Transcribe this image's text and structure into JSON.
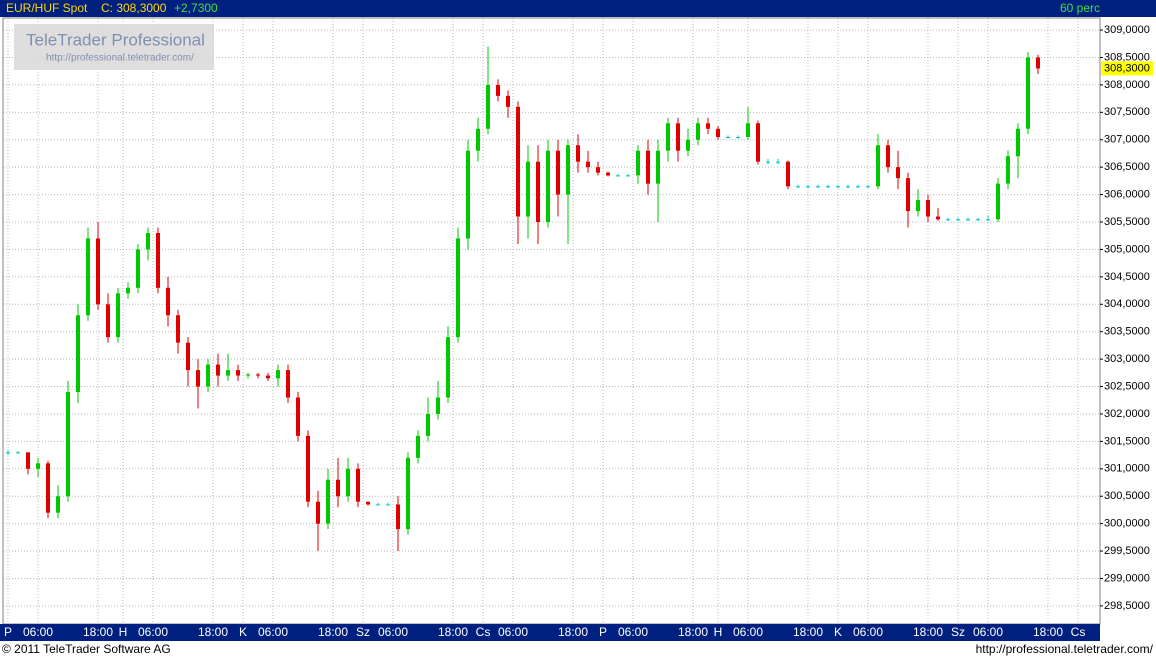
{
  "chart_data": {
    "type": "candlestick",
    "symbol": "EUR/HUF Spot",
    "close_text": "C: 308,3000",
    "change_text": "+2,7300",
    "interval": "60 perc",
    "logo_title": "TeleTrader Professional",
    "logo_url": "http://professional.teletrader.com/",
    "copyright": "© 2011 TeleTrader Software AG",
    "footer_url": "http://professional.teletrader.com/",
    "last_price_label": "308,3000",
    "up_color": "#00c800",
    "down_color": "#e00000",
    "flat_color": "#00c8c8",
    "grid": true,
    "xlim": [
      -1,
      218.4
    ],
    "ylim": [
      298.17,
      309.22
    ],
    "xticks": [
      {
        "value": 0,
        "label": "P"
      },
      {
        "value": 6,
        "label": "06:00"
      },
      {
        "value": 18,
        "label": "18:00"
      },
      {
        "value": 23,
        "label": "H"
      },
      {
        "value": 29,
        "label": "06:00"
      },
      {
        "value": 41,
        "label": "18:00"
      },
      {
        "value": 47,
        "label": "K"
      },
      {
        "value": 53,
        "label": "06:00"
      },
      {
        "value": 65,
        "label": "18:00"
      },
      {
        "value": 71,
        "label": "Sz"
      },
      {
        "value": 77,
        "label": "06:00"
      },
      {
        "value": 89,
        "label": "18:00"
      },
      {
        "value": 95,
        "label": "Cs"
      },
      {
        "value": 101,
        "label": "06:00"
      },
      {
        "value": 113,
        "label": "18:00"
      },
      {
        "value": 119,
        "label": "P"
      },
      {
        "value": 125,
        "label": "06:00"
      },
      {
        "value": 137,
        "label": "18:00"
      },
      {
        "value": 142,
        "label": "H"
      },
      {
        "value": 148,
        "label": "06:00"
      },
      {
        "value": 160,
        "label": "18:00"
      },
      {
        "value": 166,
        "label": "K"
      },
      {
        "value": 172,
        "label": "06:00"
      },
      {
        "value": 184,
        "label": "18:00"
      },
      {
        "value": 190,
        "label": "Sz"
      },
      {
        "value": 196,
        "label": "06:00"
      },
      {
        "value": 208,
        "label": "18:00"
      },
      {
        "value": 214,
        "label": "Cs"
      }
    ],
    "yticks": [
      {
        "value": 298.5,
        "label": "298,5000"
      },
      {
        "value": 299,
        "label": "299,0000"
      },
      {
        "value": 299.5,
        "label": "299,5000"
      },
      {
        "value": 300,
        "label": "300,0000"
      },
      {
        "value": 300.5,
        "label": "300,5000"
      },
      {
        "value": 301,
        "label": "301,0000"
      },
      {
        "value": 301.5,
        "label": "301,5000"
      },
      {
        "value": 302,
        "label": "302,0000"
      },
      {
        "value": 302.5,
        "label": "302,5000"
      },
      {
        "value": 303,
        "label": "303,0000"
      },
      {
        "value": 303.5,
        "label": "303,5000"
      },
      {
        "value": 304,
        "label": "304,0000"
      },
      {
        "value": 304.5,
        "label": "304,5000"
      },
      {
        "value": 305,
        "label": "305,0000"
      },
      {
        "value": 305.5,
        "label": "305,5000"
      },
      {
        "value": 306,
        "label": "306,0000"
      },
      {
        "value": 306.5,
        "label": "306,5000"
      },
      {
        "value": 307,
        "label": "307,0000"
      },
      {
        "value": 307.5,
        "label": "307,5000"
      },
      {
        "value": 308,
        "label": "308,0000"
      },
      {
        "value": 308.5,
        "label": "308,5000"
      },
      {
        "value": 309,
        "label": "309,0000"
      }
    ],
    "x": [
      0,
      2,
      4,
      6,
      8,
      10,
      12,
      14,
      16,
      18,
      20,
      22,
      24,
      26,
      28,
      30,
      32,
      34,
      36,
      38,
      40,
      42,
      44,
      46,
      48,
      50,
      52,
      54,
      56,
      58,
      60,
      62,
      64,
      66,
      68,
      70,
      72,
      74,
      76,
      78,
      80,
      82,
      84,
      86,
      88,
      90,
      92,
      94,
      96,
      98,
      100,
      102,
      104,
      106,
      108,
      110,
      112,
      114,
      116,
      118,
      120,
      122,
      124,
      126,
      128,
      130,
      132,
      134,
      136,
      138,
      140,
      142,
      144,
      146,
      148,
      150,
      152,
      154,
      156,
      158,
      160,
      162,
      164,
      166,
      168,
      170,
      172,
      174,
      176,
      178,
      180,
      182,
      184,
      186,
      188,
      190,
      192,
      194,
      196,
      198,
      200,
      202,
      204,
      206
    ],
    "open": [
      301.3,
      301.3,
      301.3,
      301.0,
      301.1,
      300.2,
      300.5,
      302.4,
      303.8,
      305.2,
      304.0,
      303.4,
      304.2,
      304.3,
      305.0,
      305.3,
      304.3,
      303.8,
      303.3,
      302.8,
      302.5,
      302.9,
      302.7,
      302.8,
      302.7,
      302.72,
      302.7,
      302.65,
      302.8,
      302.3,
      301.6,
      300.4,
      300.0,
      300.8,
      300.5,
      301.0,
      300.4,
      300.35,
      300.35,
      300.35,
      299.9,
      301.2,
      301.6,
      302.0,
      302.3,
      303.4,
      305.2,
      306.8,
      307.2,
      308.0,
      307.8,
      307.6,
      305.6,
      306.6,
      305.5,
      306.8,
      306.0,
      306.9,
      306.6,
      306.5,
      306.4,
      306.35,
      306.35,
      306.35,
      306.8,
      306.2,
      306.8,
      307.3,
      306.8,
      307.0,
      307.3,
      307.2,
      307.05,
      307.05,
      307.05,
      307.3,
      306.6,
      306.6,
      306.6,
      306.15,
      306.15,
      306.15,
      306.15,
      306.15,
      306.15,
      306.15,
      306.15,
      306.15,
      306.9,
      306.5,
      306.3,
      305.7,
      305.9,
      305.6,
      305.55,
      305.55,
      305.55,
      305.55,
      305.55,
      305.55,
      306.2,
      306.7,
      307.2,
      308.5
    ],
    "high": [
      301.35,
      301.32,
      301.3,
      301.2,
      301.15,
      300.7,
      302.6,
      304.0,
      305.4,
      305.5,
      304.2,
      304.3,
      304.4,
      305.1,
      305.4,
      305.4,
      304.5,
      303.9,
      303.4,
      303.0,
      303.0,
      303.1,
      303.1,
      302.9,
      302.75,
      302.75,
      302.75,
      302.9,
      302.9,
      302.4,
      301.7,
      300.6,
      301.0,
      301.2,
      301.2,
      301.1,
      300.4,
      300.38,
      300.38,
      300.5,
      301.3,
      301.7,
      302.3,
      302.6,
      303.6,
      305.4,
      307.0,
      307.4,
      308.7,
      308.1,
      307.9,
      307.7,
      306.9,
      306.9,
      307.0,
      307.0,
      307.0,
      307.1,
      306.8,
      306.6,
      306.42,
      306.38,
      306.38,
      306.9,
      307.0,
      307.0,
      307.4,
      307.4,
      307.2,
      307.4,
      307.4,
      307.25,
      307.08,
      307.08,
      307.6,
      307.35,
      306.65,
      306.65,
      306.62,
      306.18,
      306.18,
      306.18,
      306.18,
      306.18,
      306.18,
      306.18,
      306.18,
      307.1,
      307.0,
      306.8,
      306.4,
      306.1,
      306.0,
      305.75,
      305.58,
      305.58,
      305.58,
      305.58,
      305.62,
      306.3,
      306.8,
      307.3,
      308.6,
      308.55
    ],
    "low": [
      301.25,
      301.28,
      300.9,
      300.85,
      300.1,
      300.1,
      300.4,
      302.2,
      303.7,
      303.9,
      303.3,
      303.3,
      304.1,
      304.2,
      304.8,
      304.2,
      303.6,
      303.1,
      302.5,
      302.1,
      302.4,
      302.5,
      302.6,
      302.6,
      302.65,
      302.65,
      302.6,
      302.5,
      302.2,
      301.5,
      300.3,
      299.5,
      299.9,
      300.3,
      300.4,
      300.3,
      300.33,
      300.33,
      300.33,
      299.5,
      299.8,
      301.1,
      301.5,
      301.9,
      302.2,
      303.3,
      305.0,
      306.6,
      307.1,
      307.7,
      307.4,
      305.1,
      305.2,
      305.1,
      305.4,
      305.6,
      305.1,
      306.4,
      306.4,
      306.35,
      306.33,
      306.33,
      306.33,
      306.2,
      306.0,
      305.5,
      306.6,
      306.6,
      306.7,
      306.9,
      307.1,
      307.0,
      307.02,
      307.02,
      307.0,
      306.55,
      306.55,
      306.55,
      306.1,
      306.12,
      306.12,
      306.12,
      306.12,
      306.12,
      306.12,
      306.12,
      306.12,
      306.1,
      306.4,
      306.1,
      305.4,
      305.6,
      305.5,
      305.52,
      305.52,
      305.52,
      305.52,
      305.52,
      305.52,
      305.5,
      306.1,
      306.3,
      307.1,
      308.2
    ],
    "close": [
      301.3,
      301.3,
      301.0,
      301.1,
      300.2,
      300.5,
      302.4,
      303.8,
      305.2,
      304.0,
      303.4,
      304.2,
      304.3,
      305.0,
      305.3,
      304.3,
      303.8,
      303.3,
      302.8,
      302.5,
      302.9,
      302.7,
      302.8,
      302.7,
      302.72,
      302.7,
      302.65,
      302.8,
      302.3,
      301.6,
      300.4,
      300.0,
      300.8,
      300.5,
      301.0,
      300.4,
      300.35,
      300.35,
      300.35,
      299.9,
      301.2,
      301.6,
      302.0,
      302.3,
      303.4,
      305.2,
      306.8,
      307.2,
      308.0,
      307.8,
      307.6,
      305.6,
      306.6,
      305.5,
      306.8,
      306.0,
      306.9,
      306.6,
      306.5,
      306.4,
      306.35,
      306.35,
      306.35,
      306.8,
      306.2,
      306.8,
      307.3,
      306.8,
      307.0,
      307.3,
      307.2,
      307.05,
      307.05,
      307.05,
      307.3,
      306.6,
      306.6,
      306.6,
      306.15,
      306.15,
      306.15,
      306.15,
      306.15,
      306.15,
      306.15,
      306.15,
      306.15,
      306.9,
      306.5,
      306.3,
      305.7,
      305.9,
      305.6,
      305.55,
      305.55,
      305.55,
      305.55,
      305.55,
      305.55,
      306.2,
      306.7,
      307.2,
      308.5,
      308.3
    ]
  }
}
